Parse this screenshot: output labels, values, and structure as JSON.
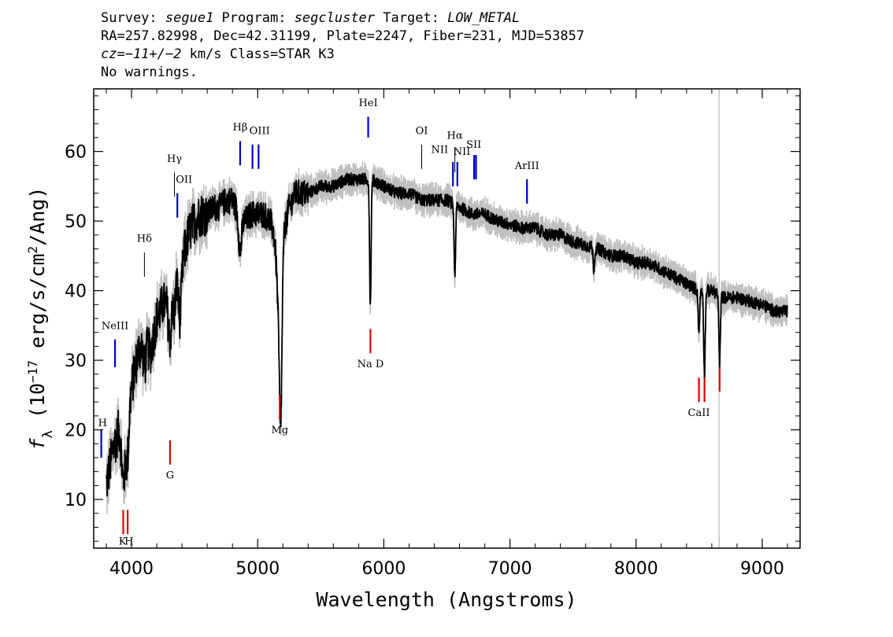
{
  "header": {
    "line1": {
      "survey_label": "Survey: ",
      "survey": "segue1",
      "program_label": " Program: ",
      "program": "segcluster",
      "target_label": " Target: ",
      "target": "LOW_METAL"
    },
    "line2": "RA=257.82998, Dec=42.31199, Plate=2247, Fiber=231, MJD=53857",
    "line3": {
      "cz": "cz=−11+/−2",
      "rest": " km/s Class=STAR K3"
    },
    "line4": "No warnings."
  },
  "chart_data": {
    "type": "line",
    "xlabel": "Wavelength (Angstroms)",
    "ylabel_parts": {
      "f": "f",
      "sub": "λ",
      "pre": " (10",
      "exp": "−17",
      "mid": " erg/s/cm",
      "exp2": "2",
      "post": "/Ang)"
    },
    "xlim": [
      3700,
      9300
    ],
    "ylim": [
      3,
      69
    ],
    "x_ticks": [
      4000,
      5000,
      6000,
      7000,
      8000,
      9000
    ],
    "y_ticks": [
      10,
      20,
      30,
      40,
      50,
      60
    ],
    "grid": false,
    "colors": {
      "flux": "#000000",
      "error": "#c0c0c0",
      "emission": "#0000cc",
      "absorption": "#dd0000",
      "label_tick": "#000000"
    },
    "continuum": [
      [
        3800,
        12
      ],
      [
        3850,
        17
      ],
      [
        3900,
        20
      ],
      [
        3950,
        18
      ],
      [
        4000,
        26
      ],
      [
        4050,
        31
      ],
      [
        4100,
        33
      ],
      [
        4150,
        31
      ],
      [
        4200,
        36
      ],
      [
        4250,
        38
      ],
      [
        4300,
        39
      ],
      [
        4350,
        42
      ],
      [
        4400,
        44
      ],
      [
        4450,
        48
      ],
      [
        4500,
        50
      ],
      [
        4550,
        51
      ],
      [
        4600,
        51
      ],
      [
        4650,
        52
      ],
      [
        4700,
        52
      ],
      [
        4750,
        53
      ],
      [
        4800,
        53
      ],
      [
        4850,
        51
      ],
      [
        4900,
        50
      ],
      [
        4950,
        51
      ],
      [
        5000,
        51
      ],
      [
        5050,
        51
      ],
      [
        5100,
        50
      ],
      [
        5150,
        47
      ],
      [
        5200,
        48
      ],
      [
        5250,
        52
      ],
      [
        5300,
        54
      ],
      [
        5400,
        54
      ],
      [
        5500,
        55
      ],
      [
        5600,
        55
      ],
      [
        5700,
        56
      ],
      [
        5800,
        56
      ],
      [
        5900,
        56
      ],
      [
        6000,
        55
      ],
      [
        6100,
        54
      ],
      [
        6200,
        54
      ],
      [
        6300,
        53
      ],
      [
        6400,
        53
      ],
      [
        6500,
        53
      ],
      [
        6600,
        52
      ],
      [
        6700,
        51
      ],
      [
        6800,
        51
      ],
      [
        6900,
        50
      ],
      [
        7000,
        49.5
      ],
      [
        7100,
        49
      ],
      [
        7200,
        49
      ],
      [
        7300,
        48
      ],
      [
        7400,
        48
      ],
      [
        7500,
        47
      ],
      [
        7600,
        46.5
      ],
      [
        7700,
        46
      ],
      [
        7800,
        45
      ],
      [
        7900,
        45
      ],
      [
        8000,
        44
      ],
      [
        8100,
        44
      ],
      [
        8200,
        43
      ],
      [
        8300,
        42
      ],
      [
        8400,
        41
      ],
      [
        8500,
        40
      ],
      [
        8600,
        40
      ],
      [
        8700,
        39
      ],
      [
        8800,
        39
      ],
      [
        8900,
        38.5
      ],
      [
        9000,
        38
      ],
      [
        9100,
        37
      ],
      [
        9200,
        37
      ]
    ],
    "absorption_dips": [
      {
        "wl": 3934,
        "depth": 6,
        "width": 12
      },
      {
        "wl": 3968,
        "depth": 5,
        "width": 10
      },
      {
        "wl": 4102,
        "depth": 4,
        "width": 10
      },
      {
        "wl": 4305,
        "depth": 6,
        "width": 14
      },
      {
        "wl": 4340,
        "depth": 4,
        "width": 10
      },
      {
        "wl": 4383,
        "depth": 7,
        "width": 12
      },
      {
        "wl": 4861,
        "depth": 5,
        "width": 12
      },
      {
        "wl": 5170,
        "depth": 10,
        "width": 16
      },
      {
        "wl": 5183,
        "depth": 20,
        "width": 10
      },
      {
        "wl": 5893,
        "depth": 18,
        "width": 6
      },
      {
        "wl": 6563,
        "depth": 10,
        "width": 6
      },
      {
        "wl": 7665,
        "depth": 3,
        "width": 6
      },
      {
        "wl": 8498,
        "depth": 6,
        "width": 6
      },
      {
        "wl": 8542,
        "depth": 12,
        "width": 6
      },
      {
        "wl": 8662,
        "depth": 10,
        "width": 6
      }
    ],
    "mask_line": {
      "wl": 8658,
      "y_bottom": 3,
      "y_top": 69
    },
    "line_markers": [
      {
        "label": "H",
        "wl": 3760,
        "y1": 16,
        "y2": 20,
        "label_y": 20.5,
        "kind": "emission"
      },
      {
        "label": "NeIII",
        "wl": 3869,
        "y1": 29,
        "y2": 33,
        "label_y": 34.5,
        "kind": "emission"
      },
      {
        "label": "Hδ",
        "wl": 4102,
        "y1": 42,
        "y2": 45.5,
        "label_y": 47,
        "kind": "tick"
      },
      {
        "label": "Hγ",
        "wl": 4340,
        "y1": 53.5,
        "y2": 57,
        "label_y": 58.5,
        "kind": "tick"
      },
      {
        "label": "OII",
        "wl": 4363,
        "y1": 50.5,
        "y2": 54,
        "label_y": 55.5,
        "kind": "emission"
      },
      {
        "label": "Hβ",
        "wl": 4861,
        "y1": 58,
        "y2": 61.5,
        "label_y": 63,
        "kind": "emission"
      },
      {
        "label": "OIII",
        "wl": 4959,
        "y1": 57.5,
        "y2": 61,
        "label_y": 62.5,
        "kind": "emission"
      },
      {
        "label": "OIII_b",
        "wl": 5007,
        "y1": 57.5,
        "y2": 61,
        "label_y": null,
        "kind": "emission"
      },
      {
        "label": "HeI",
        "wl": 5876,
        "y1": 62,
        "y2": 65,
        "label_y": 66.5,
        "kind": "emission"
      },
      {
        "label": "OI",
        "wl": 6300,
        "y1": 57.5,
        "y2": 61,
        "label_y": 62.5,
        "kind": "tick"
      },
      {
        "label": "NII",
        "wl": 6548,
        "y1": 55,
        "y2": 58.5,
        "label_y": 59.8,
        "kind": "emission"
      },
      {
        "label": "Hα",
        "wl": 6563,
        "y1": 57,
        "y2": 60.5,
        "label_y": 61.8,
        "kind": "tick"
      },
      {
        "label": "NII",
        "wl": 6583,
        "y1": 55,
        "y2": 58.5,
        "label_y": 59.5,
        "kind": "emission"
      },
      {
        "label": "SII",
        "wl": 6716,
        "y1": 56,
        "y2": 59.5,
        "label_y": 60.5,
        "kind": "emission"
      },
      {
        "label": "SII_b",
        "wl": 6731,
        "y1": 56,
        "y2": 59.5,
        "label_y": null,
        "kind": "emission"
      },
      {
        "label": "ArIII",
        "wl": 7135,
        "y1": 52.5,
        "y2": 56,
        "label_y": 57.5,
        "kind": "emission"
      },
      {
        "label": "K",
        "wl": 3934,
        "y1": 5,
        "y2": 8.5,
        "label_y": 3.5,
        "kind": "absorption"
      },
      {
        "label": "H",
        "wl": 3969,
        "y1": 5,
        "y2": 8.5,
        "label_y": 3.5,
        "kind": "absorption"
      },
      {
        "label": "G",
        "wl": 4305,
        "y1": 15,
        "y2": 18.5,
        "label_y": 13,
        "kind": "absorption"
      },
      {
        "label": "Mg",
        "wl": 5175,
        "y1": 21.5,
        "y2": 25,
        "label_y": 19.5,
        "kind": "absorption"
      },
      {
        "label": "Na D",
        "wl": 5894,
        "y1": 31,
        "y2": 34.5,
        "label_y": 29,
        "kind": "absorption"
      },
      {
        "label": "CaII",
        "wl": 8498,
        "y1": 24,
        "y2": 27.5,
        "label_y": 22,
        "kind": "absorption"
      },
      {
        "label": "CaII_b",
        "wl": 8542,
        "y1": 24,
        "y2": 27.5,
        "label_y": null,
        "kind": "absorption"
      },
      {
        "label": "CaII_c",
        "wl": 8662,
        "y1": 25.5,
        "y2": 29,
        "label_y": null,
        "kind": "absorption"
      }
    ]
  }
}
